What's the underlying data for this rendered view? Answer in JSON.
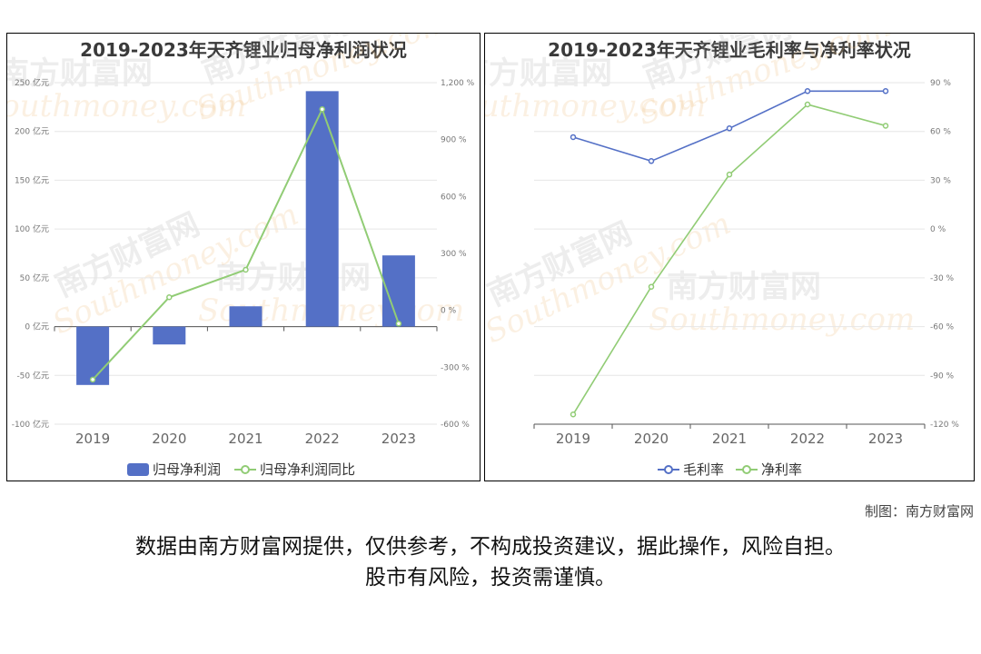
{
  "credit": "制图：南方财富网",
  "disclaimer_line1": "数据由南方财富网提供，仅供参考，不构成投资建议，据此操作，风险自担。",
  "disclaimer_line2": "股市有风险，投资需谨慎。",
  "watermark": {
    "cn": "南方财富网",
    "en": "Southmoney.com"
  },
  "chart_data": [
    {
      "type": "bar",
      "title": "2019-2023年天齐锂业归母净利润状况",
      "categories": [
        "2019",
        "2020",
        "2021",
        "2022",
        "2023"
      ],
      "series": [
        {
          "name": "归母净利润",
          "kind": "bar",
          "axis": "left",
          "color": "#5470c6",
          "values": [
            -59.8,
            -18.3,
            20.8,
            241.3,
            72.97
          ]
        },
        {
          "name": "归母净利润同比",
          "kind": "line",
          "axis": "right",
          "color": "#91cc75",
          "values": [
            -365,
            69,
            214,
            1060,
            -70
          ]
        }
      ],
      "y_left": {
        "min": -100,
        "max": 250,
        "step": 50,
        "unit": "亿元"
      },
      "y_right": {
        "min": -600,
        "max": 1200,
        "step": 300,
        "unit": "%"
      },
      "legend_position": "bottom"
    },
    {
      "type": "line",
      "title": "2019-2023年天齐锂业毛利率与净利率状况",
      "categories": [
        "2019",
        "2020",
        "2021",
        "2022",
        "2023"
      ],
      "series": [
        {
          "name": "毛利率",
          "color": "#5470c6",
          "values": [
            56.5,
            41.8,
            61.9,
            84.8,
            84.8
          ]
        },
        {
          "name": "净利率",
          "color": "#91cc75",
          "values": [
            -114,
            -35.5,
            33.5,
            76.6,
            63.5
          ]
        }
      ],
      "y_right": {
        "min": -120,
        "max": 90,
        "step": 30,
        "unit": "%"
      },
      "legend_position": "bottom"
    }
  ]
}
